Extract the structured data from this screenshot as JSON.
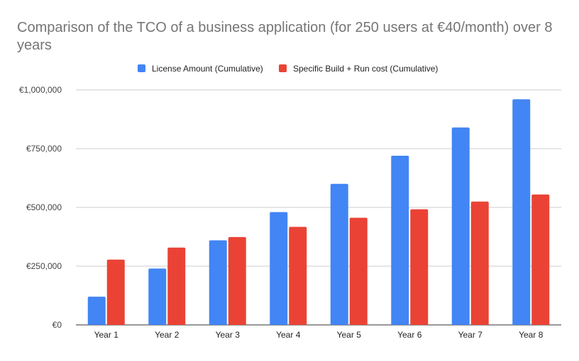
{
  "chart_data": {
    "type": "bar",
    "title": "Comparison of the TCO of a business application (for 250 users at €40/month) over 8 years",
    "title_lines": [
      "Comparison of the TCO of a business application (for 250 users at €40/month) over 8",
      "years"
    ],
    "xlabel": "",
    "ylabel": "",
    "categories": [
      "Year 1",
      "Year 2",
      "Year 3",
      "Year 4",
      "Year 5",
      "Year 6",
      "Year 7",
      "Year 8"
    ],
    "series": [
      {
        "name": "License Amount (Cumulative)",
        "color": "#4285f4",
        "values": [
          120000,
          240000,
          360000,
          480000,
          600000,
          720000,
          840000,
          960000
        ]
      },
      {
        "name": "Specific Build + Run cost (Cumulative)",
        "color": "#ea4335",
        "values": [
          278000,
          329000,
          374000,
          417000,
          456000,
          492000,
          525000,
          555000
        ]
      }
    ],
    "ylim": [
      0,
      1000000
    ],
    "yticks": [
      0,
      250000,
      500000,
      750000,
      1000000
    ],
    "ytick_labels": [
      "€0",
      "€250,000",
      "€500,000",
      "€750,000",
      "€1,000,000"
    ],
    "grid": true,
    "legend": "top"
  }
}
